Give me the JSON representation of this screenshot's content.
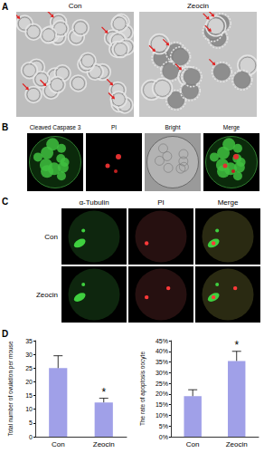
{
  "panels": [
    {
      "label": "A",
      "columns": [
        "Con",
        "Zeocin"
      ]
    },
    {
      "label": "B",
      "columns": [
        "Cleaved Caspase 3",
        "PI",
        "Bright",
        "Merge"
      ]
    },
    {
      "label": "C",
      "columns": [
        "α-Tubulin",
        "PI",
        "Merge"
      ],
      "rows": [
        "Con",
        "Zeocin"
      ]
    },
    {
      "label": "D"
    }
  ],
  "chart_data": [
    {
      "type": "bar",
      "categories": [
        "Con",
        "Zeocin"
      ],
      "values": [
        25,
        12.5
      ],
      "errors": [
        4.5,
        1.5
      ],
      "color": "#a0a0e8",
      "ylabel": "Total number of ovulation per mouse",
      "ylim": [
        0,
        35
      ],
      "yticks": [
        0,
        5,
        10,
        15,
        20,
        25,
        30,
        35
      ],
      "grid": false,
      "annotations": [
        {
          "category": "Zeocin",
          "text": "*"
        }
      ]
    },
    {
      "type": "bar",
      "categories": [
        "Con",
        "Zeocin"
      ],
      "values": [
        19,
        35.5
      ],
      "errors": [
        3,
        4.5
      ],
      "color": "#a0a0e8",
      "ylabel": "The rate of apoptosis oocyte",
      "ylim": [
        0,
        45
      ],
      "yticks": [
        {
          "value": 0,
          "label": "0%"
        },
        {
          "value": 5,
          "label": "5%"
        },
        {
          "value": 10,
          "label": "10%"
        },
        {
          "value": 15,
          "label": "15%"
        },
        {
          "value": 20,
          "label": "20%"
        },
        {
          "value": 25,
          "label": "25%"
        },
        {
          "value": 30,
          "label": "30%"
        },
        {
          "value": 35,
          "label": "35%"
        },
        {
          "value": 40,
          "label": "40%"
        },
        {
          "value": 45,
          "label": "45%"
        }
      ],
      "grid": false,
      "annotations": [
        {
          "category": "Zeocin",
          "text": "*"
        }
      ]
    }
  ]
}
